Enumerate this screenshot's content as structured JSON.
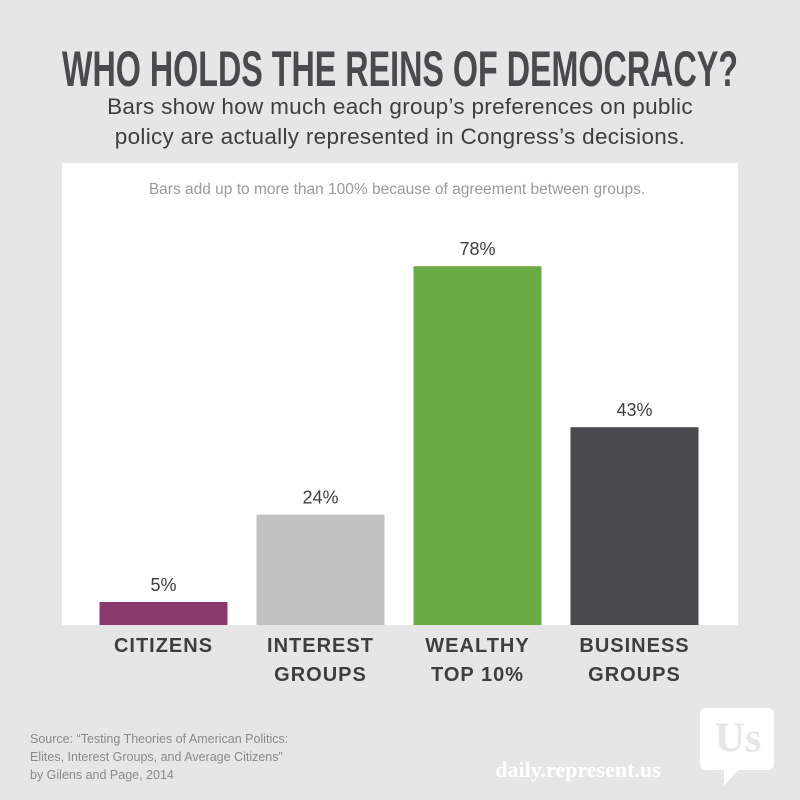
{
  "chart_data": {
    "type": "bar",
    "title": "WHO HOLDS THE REINS OF DEMOCRACY?",
    "subtitle": "Bars show how much each group’s preferences on public\npolicy are actually represented in Congress’s decisions.",
    "note": "Bars add up to more than 100% because of agreement between groups.",
    "categories": [
      "CITIZENS",
      "INTEREST\nGROUPS",
      "WEALTHY\nTOP 10%",
      "BUSINESS\nGROUPS"
    ],
    "values": [
      5,
      24,
      78,
      43
    ],
    "value_labels": [
      "5%",
      "24%",
      "78%",
      "43%"
    ],
    "colors": [
      "#8a3b6c",
      "#c2c2c2",
      "#6aab43",
      "#4a494d"
    ]
  },
  "footer": {
    "source": "Source: “Testing Theories of American Politics:\nElites, Interest Groups, and Average Citizens”\nby Gilens and Page, 2014",
    "logo": "Us",
    "site": "daily.represent.us"
  }
}
